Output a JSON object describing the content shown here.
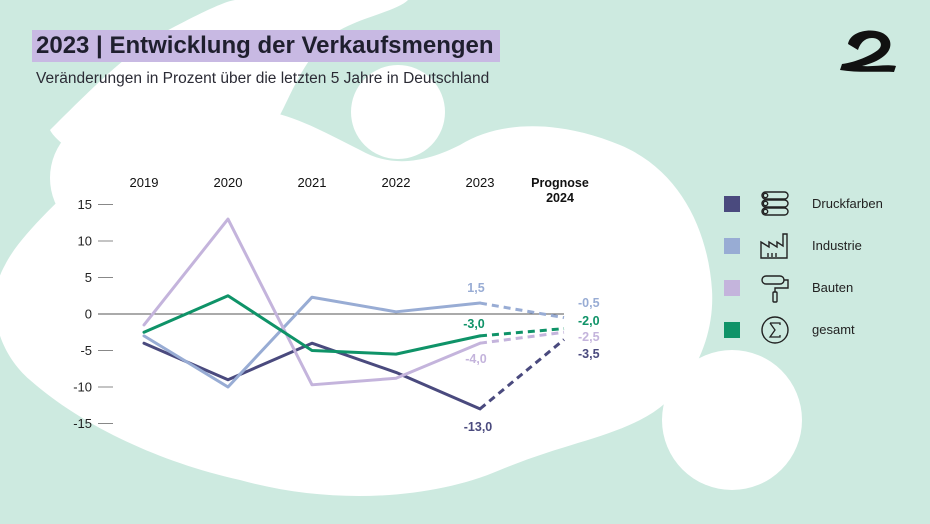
{
  "header": {
    "title": "2023 | Entwicklung der Verkaufsmengen",
    "subtitle": "Veränderungen in Prozent über die letzten 5 Jahre in Deutschland"
  },
  "colors": {
    "background": "#cdeae0",
    "title_highlight": "#c8b9e3",
    "druckfarben": "#4a4a7e",
    "industrie": "#98acd4",
    "bauten": "#c4b4dc",
    "gesamt": "#0f9368"
  },
  "legend": {
    "items": [
      {
        "label": "Druckfarben",
        "icon": "printer-rollers-icon"
      },
      {
        "label": "Industrie",
        "icon": "factory-icon"
      },
      {
        "label": "Bauten",
        "icon": "paint-roller-icon"
      },
      {
        "label": "gesamt",
        "icon": "sigma-icon"
      }
    ]
  },
  "chart_data": {
    "type": "line",
    "title": "2023 | Entwicklung der Verkaufsmengen",
    "subtitle": "Veränderungen in Prozent über die letzten 5 Jahre in Deutschland",
    "categories": [
      "2019",
      "2020",
      "2021",
      "2022",
      "2023",
      "Prognose 2024"
    ],
    "ylim": [
      -15,
      15
    ],
    "yticks": [
      15,
      10,
      5,
      0,
      -5,
      -10,
      -15
    ],
    "grid": false,
    "legend_position": "right",
    "forecast_category": "Prognose 2024",
    "series": [
      {
        "name": "Druckfarben",
        "key": "druckfarben",
        "values": [
          -4.0,
          -9.0,
          -4.0,
          -8.0,
          -13.0,
          -3.5
        ],
        "label_2023": "-13,0",
        "label_forecast": "-3,5"
      },
      {
        "name": "Industrie",
        "key": "industrie",
        "values": [
          -3.0,
          -10.0,
          2.3,
          0.3,
          1.5,
          -0.5
        ],
        "label_2023": "1,5",
        "label_forecast": "-0,5"
      },
      {
        "name": "Bauten",
        "key": "bauten",
        "values": [
          -1.5,
          13.0,
          -9.7,
          -8.8,
          -4.0,
          -2.5
        ],
        "label_2023": "-4,0",
        "label_forecast": "-2,5"
      },
      {
        "name": "gesamt",
        "key": "gesamt",
        "values": [
          -2.5,
          2.5,
          -5.0,
          -5.5,
          -3.0,
          -2.0
        ],
        "label_2023": "-3,0",
        "label_forecast": "-2,0"
      }
    ]
  }
}
